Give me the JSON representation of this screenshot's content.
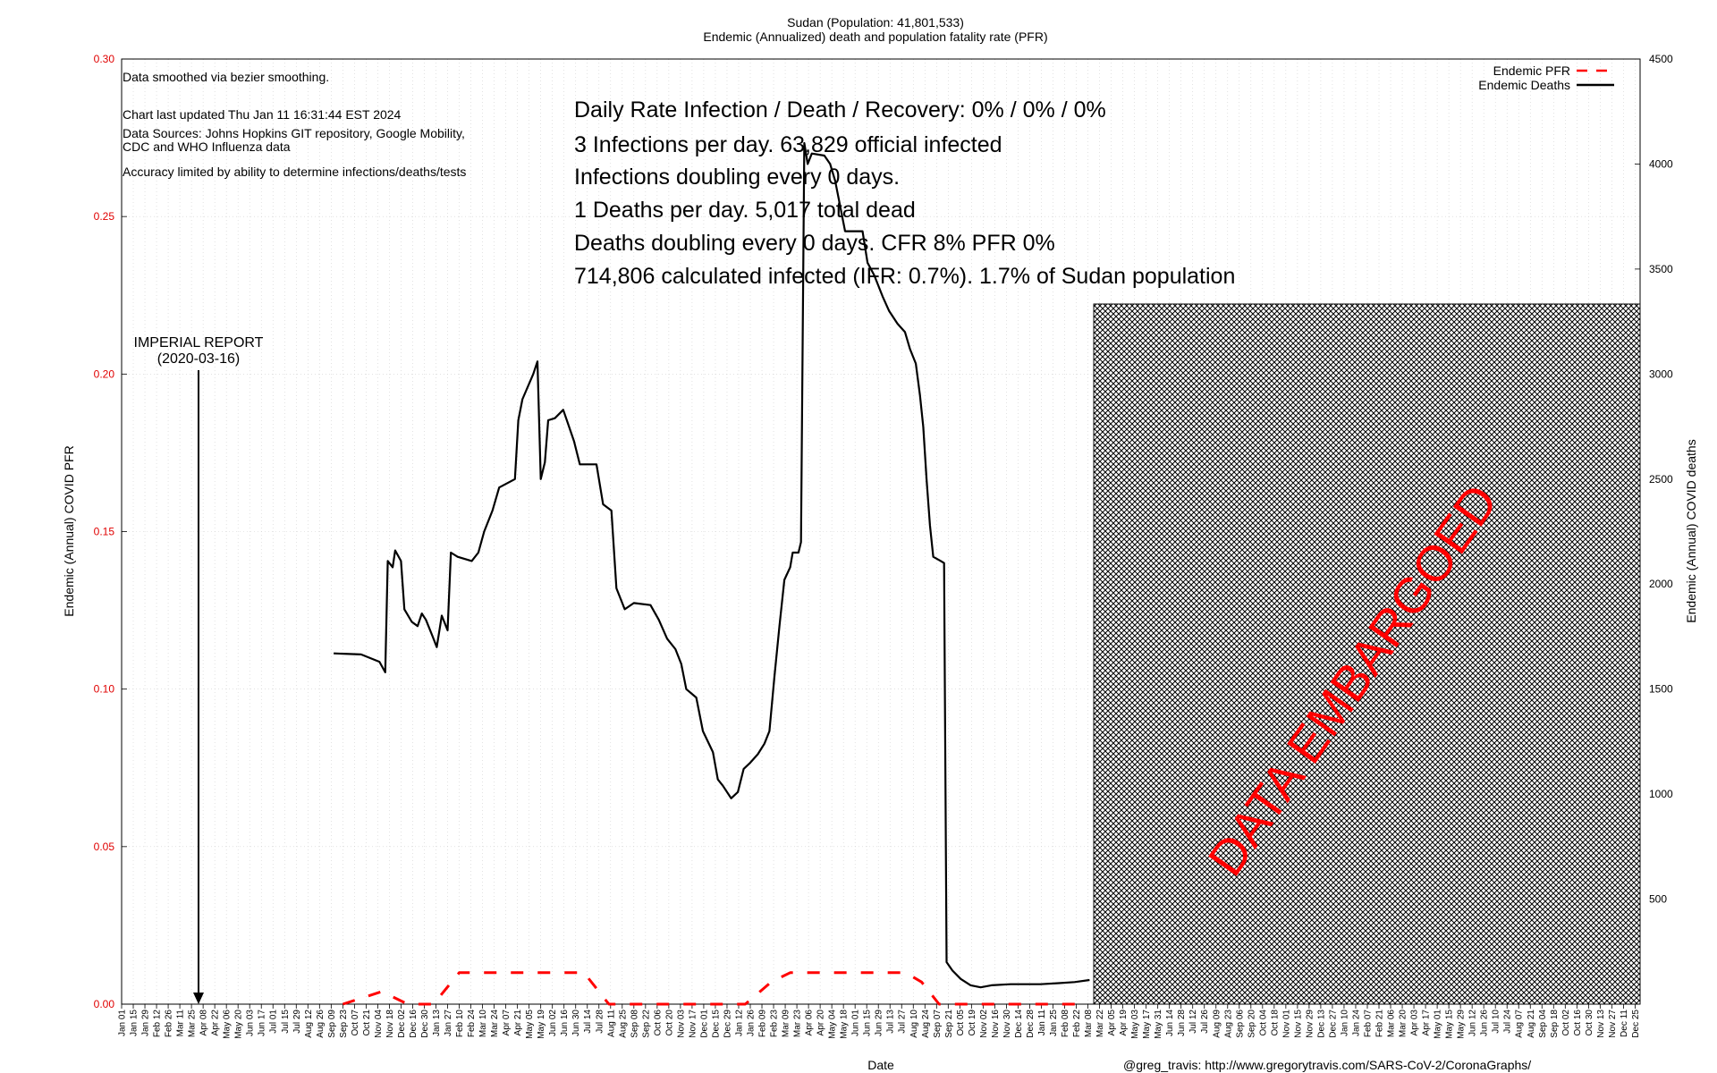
{
  "title": "Sudan (Population: 41,801,533)",
  "subtitle": "Endemic (Annualized) death and population fatality rate (PFR)",
  "notes": [
    "Data smoothed via bezier smoothing.",
    "Chart last updated Thu Jan 11 16:31:44 EST 2024",
    "Data Sources: Johns Hopkins GIT repository, Google Mobility,",
    "CDC and WHO Influenza data",
    "Accuracy limited by ability to determine infections/deaths/tests"
  ],
  "stats": [
    "Daily Rate Infection / Death / Recovery: 0% / 0% / 0%",
    "3 Infections per day.  63,829 official infected",
    "Infections doubling every 0 days.",
    "1 Deaths per day.  5,017 total dead",
    "Deaths doubling every 0 days.  CFR 8%  PFR 0%",
    "714,806 calculated infected (IFR: 0.7%).  1.7% of Sudan population"
  ],
  "annotation": {
    "line1": "IMPERIAL REPORT",
    "line2": "(2020-03-16)"
  },
  "embargo_label": "DATA EMBARGOED",
  "credit": "@greg_travis: http://www.gregorytravis.com/SARS-CoV-2/CoronaGraphs/",
  "colors": {
    "pfr": "#ff0000",
    "deaths": "#000000",
    "left_ticks": "#e00000",
    "embargo_text": "#ff0000"
  },
  "chart_data": {
    "type": "line",
    "title": "Sudan (Population: 41,801,533)",
    "subtitle": "Endemic (Annualized) death and population fatality rate (PFR)",
    "xlabel": "Date",
    "ylabel_left": "Endemic (Annual) COVID PFR",
    "ylabel_right": "Endemic (Annual) COVID deaths",
    "ylim_left": [
      0,
      0.3
    ],
    "ylim_right": [
      0,
      4500
    ],
    "yticks_left": [
      "0.00",
      "0.05",
      "0.10",
      "0.15",
      "0.20",
      "0.25",
      "0.30"
    ],
    "yticks_right": [
      "500",
      "1000",
      "1500",
      "2000",
      "2500",
      "3000",
      "3500",
      "4000",
      "4500"
    ],
    "x_range": [
      "2020-01-01",
      "2024-12-31"
    ],
    "embargo_start": "2023-03-15",
    "grid": true,
    "legend_position": "top-right",
    "series": [
      {
        "name": "Endemic PFR",
        "axis": "left",
        "style": "dashed",
        "color": "#ff0000",
        "points": [
          [
            "2020-09-23",
            0.0
          ],
          [
            "2020-11-09",
            0.004
          ],
          [
            "2020-12-10",
            0.0
          ],
          [
            "2021-01-10",
            0.0
          ],
          [
            "2021-02-10",
            0.01
          ],
          [
            "2021-03-10",
            0.01
          ],
          [
            "2021-06-10",
            0.01
          ],
          [
            "2021-07-10",
            0.01
          ],
          [
            "2021-08-09",
            0.0
          ],
          [
            "2022-01-20",
            0.0
          ],
          [
            "2022-02-20",
            0.007
          ],
          [
            "2022-03-15",
            0.01
          ],
          [
            "2022-05-01",
            0.01
          ],
          [
            "2022-08-01",
            0.01
          ],
          [
            "2022-08-20",
            0.007
          ],
          [
            "2022-09-10",
            0.0
          ],
          [
            "2023-03-08",
            0.0
          ]
        ]
      },
      {
        "name": "Endemic Deaths",
        "axis": "right",
        "style": "solid",
        "color": "#000000",
        "points": [
          [
            "2020-09-12",
            1670
          ],
          [
            "2020-10-15",
            1665
          ],
          [
            "2020-11-06",
            1630
          ],
          [
            "2020-11-13",
            1580
          ],
          [
            "2020-11-16",
            2110
          ],
          [
            "2020-11-22",
            2080
          ],
          [
            "2020-11-25",
            2160
          ],
          [
            "2020-12-02",
            2110
          ],
          [
            "2020-12-06",
            1880
          ],
          [
            "2020-12-15",
            1820
          ],
          [
            "2020-12-22",
            1800
          ],
          [
            "2020-12-27",
            1860
          ],
          [
            "2021-01-01",
            1830
          ],
          [
            "2021-01-09",
            1750
          ],
          [
            "2021-01-14",
            1700
          ],
          [
            "2021-01-20",
            1850
          ],
          [
            "2021-01-27",
            1780
          ],
          [
            "2021-01-31",
            2150
          ],
          [
            "2021-02-08",
            2130
          ],
          [
            "2021-02-25",
            2110
          ],
          [
            "2021-03-05",
            2150
          ],
          [
            "2021-03-12",
            2250
          ],
          [
            "2021-03-22",
            2350
          ],
          [
            "2021-03-30",
            2460
          ],
          [
            "2021-04-18",
            2500
          ],
          [
            "2021-04-22",
            2780
          ],
          [
            "2021-04-27",
            2880
          ],
          [
            "2021-05-10",
            3000
          ],
          [
            "2021-05-15",
            3060
          ],
          [
            "2021-05-19",
            2500
          ],
          [
            "2021-05-24",
            2580
          ],
          [
            "2021-05-28",
            2780
          ],
          [
            "2021-06-05",
            2790
          ],
          [
            "2021-06-15",
            2830
          ],
          [
            "2021-06-22",
            2750
          ],
          [
            "2021-06-28",
            2680
          ],
          [
            "2021-07-05",
            2570
          ],
          [
            "2021-07-25",
            2570
          ],
          [
            "2021-08-02",
            2380
          ],
          [
            "2021-08-12",
            2350
          ],
          [
            "2021-08-18",
            1980
          ],
          [
            "2021-08-28",
            1880
          ],
          [
            "2021-09-08",
            1910
          ],
          [
            "2021-09-28",
            1900
          ],
          [
            "2021-10-08",
            1830
          ],
          [
            "2021-10-18",
            1740
          ],
          [
            "2021-10-28",
            1690
          ],
          [
            "2021-11-04",
            1620
          ],
          [
            "2021-11-10",
            1500
          ],
          [
            "2021-11-22",
            1460
          ],
          [
            "2021-11-30",
            1300
          ],
          [
            "2021-12-12",
            1200
          ],
          [
            "2021-12-18",
            1070
          ],
          [
            "2021-12-24",
            1040
          ],
          [
            "2022-01-03",
            980
          ],
          [
            "2022-01-11",
            1010
          ],
          [
            "2022-01-18",
            1120
          ],
          [
            "2022-01-26",
            1150
          ],
          [
            "2022-02-04",
            1190
          ],
          [
            "2022-02-12",
            1240
          ],
          [
            "2022-02-18",
            1300
          ],
          [
            "2022-02-24",
            1560
          ],
          [
            "2022-03-02",
            1800
          ],
          [
            "2022-03-08",
            2020
          ],
          [
            "2022-03-15",
            2080
          ],
          [
            "2022-03-18",
            2150
          ],
          [
            "2022-03-25",
            2150
          ],
          [
            "2022-03-28",
            2200
          ],
          [
            "2022-04-01",
            4100
          ],
          [
            "2022-04-05",
            4000
          ],
          [
            "2022-04-10",
            4050
          ],
          [
            "2022-04-25",
            4040
          ],
          [
            "2022-05-02",
            4000
          ],
          [
            "2022-05-08",
            3920
          ],
          [
            "2022-05-15",
            3780
          ],
          [
            "2022-05-20",
            3680
          ],
          [
            "2022-06-10",
            3680
          ],
          [
            "2022-06-16",
            3530
          ],
          [
            "2022-06-24",
            3470
          ],
          [
            "2022-07-04",
            3370
          ],
          [
            "2022-07-12",
            3300
          ],
          [
            "2022-07-22",
            3240
          ],
          [
            "2022-07-31",
            3200
          ],
          [
            "2022-08-06",
            3120
          ],
          [
            "2022-08-13",
            3050
          ],
          [
            "2022-08-18",
            2900
          ],
          [
            "2022-08-22",
            2750
          ],
          [
            "2022-08-26",
            2500
          ],
          [
            "2022-08-30",
            2280
          ],
          [
            "2022-09-03",
            2130
          ],
          [
            "2022-09-12",
            2110
          ],
          [
            "2022-09-16",
            2100
          ],
          [
            "2022-09-19",
            200
          ],
          [
            "2022-09-26",
            160
          ],
          [
            "2022-10-06",
            120
          ],
          [
            "2022-10-18",
            90
          ],
          [
            "2022-10-30",
            80
          ],
          [
            "2022-11-12",
            90
          ],
          [
            "2022-12-05",
            95
          ],
          [
            "2023-01-10",
            95
          ],
          [
            "2023-02-01",
            100
          ],
          [
            "2023-02-20",
            105
          ],
          [
            "2023-03-10",
            115
          ]
        ]
      }
    ]
  }
}
